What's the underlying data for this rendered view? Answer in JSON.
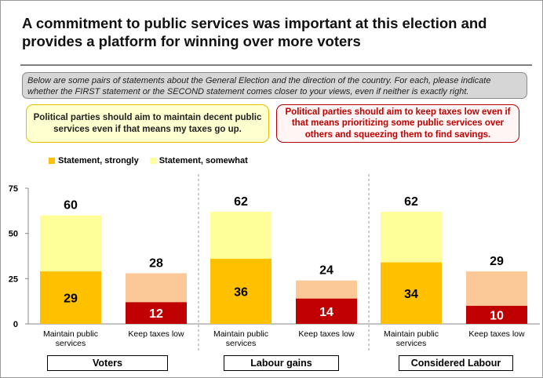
{
  "title": "A commitment to public services was important at this election and provides a platform for winning over more voters",
  "instructions": "Below are some pairs of statements about the General Election and the direction of the country. For each, please indicate whether the FIRST statement or the SECOND statement comes closer to your views, even if neither is exactly right.",
  "statement_first": "Political parties should aim to maintain decent public services even if that means my taxes go up.",
  "statement_second": "Political parties should aim to keep taxes low even if that means prioritizing some public services over others and squeezing them to find savings.",
  "legend": {
    "strongly": "Statement, strongly",
    "somewhat": "Statement, somewhat"
  },
  "colors": {
    "maintain_strong": "#ffc000",
    "maintain_somewhat": "#ffff99",
    "taxes_strong": "#c00000",
    "taxes_somewhat": "#fbc898",
    "legend_strong": "#ffc000",
    "legend_somewhat": "#ffff99"
  },
  "groups": [
    "Voters",
    "Labour gains",
    "Considered Labour"
  ],
  "chart_data": {
    "type": "bar",
    "stacked": true,
    "ylim": [
      0,
      75
    ],
    "yticks": [
      0,
      25,
      50,
      75
    ],
    "categories": [
      "Maintain public services",
      "Keep taxes low",
      "Maintain public services",
      "Keep taxes low",
      "Maintain public services",
      "Keep taxes low"
    ],
    "series": [
      {
        "name": "Statement, strongly",
        "values": [
          29,
          12,
          36,
          14,
          34,
          10
        ]
      },
      {
        "name": "Statement, somewhat",
        "values": [
          31,
          16,
          26,
          10,
          28,
          19
        ]
      }
    ],
    "totals": [
      60,
      28,
      62,
      24,
      62,
      29
    ],
    "groups": [
      "Voters",
      "Labour gains",
      "Considered Labour"
    ],
    "grid": false
  }
}
